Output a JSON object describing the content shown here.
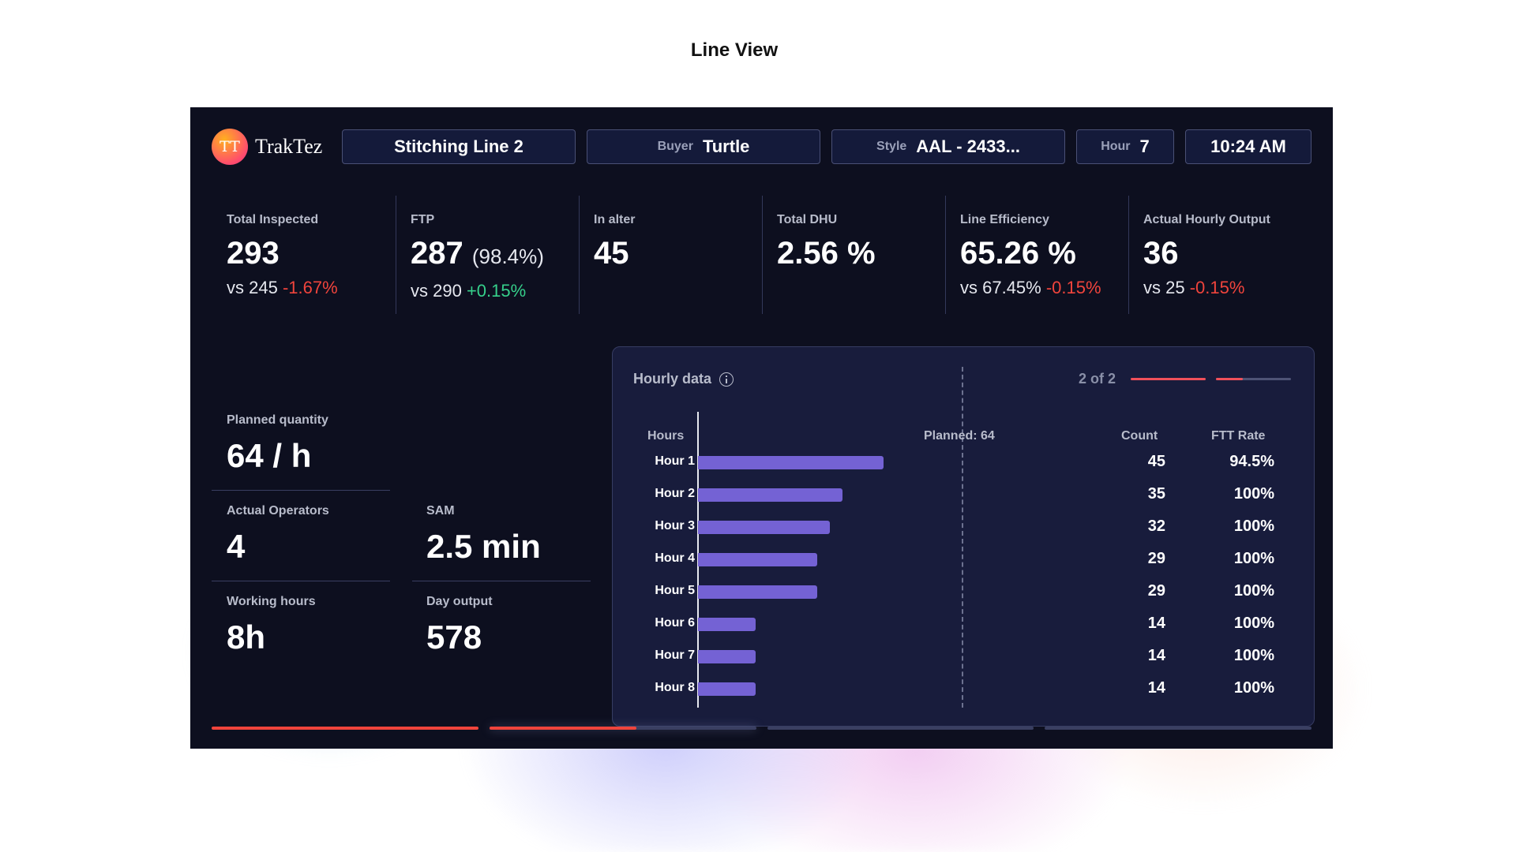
{
  "page_title": "Line View",
  "header": {
    "logo_mark": "TT",
    "logo_text": "TrakTez",
    "line_name": "Stitching Line 2",
    "buyer_label": "Buyer",
    "buyer_value": "Turtle",
    "style_label": "Style",
    "style_value": "AAL - 2433...",
    "hour_label": "Hour",
    "hour_value": "7",
    "time": "10:24 AM"
  },
  "metrics": [
    {
      "label": "Total Inspected",
      "value": "293",
      "pct": "",
      "vs": "vs 245",
      "delta": "-1.67%",
      "delta_sign": "neg"
    },
    {
      "label": "FTP",
      "value": "287",
      "pct": "(98.4%)",
      "vs": "vs 290",
      "delta": "+0.15%",
      "delta_sign": "pos"
    },
    {
      "label": "In alter",
      "value": "45",
      "pct": "",
      "vs": "",
      "delta": "",
      "delta_sign": ""
    },
    {
      "label": "Total DHU",
      "value": "2.56 %",
      "pct": "",
      "vs": "",
      "delta": "",
      "delta_sign": ""
    },
    {
      "label": "Line Efficiency",
      "value": "65.26 %",
      "pct": "",
      "vs": "vs 67.45%",
      "delta": "-0.15%",
      "delta_sign": "neg"
    },
    {
      "label": "Actual Hourly Output",
      "value": "36",
      "pct": "",
      "vs": "vs 25",
      "delta": "-0.15%",
      "delta_sign": "neg"
    }
  ],
  "stats": {
    "planned_quantity": {
      "label": "Planned quantity",
      "value": "64 / h"
    },
    "actual_operators": {
      "label": "Actual Operators",
      "value": "4"
    },
    "sam": {
      "label": "SAM",
      "value": "2.5 min"
    },
    "working_hours": {
      "label": "Working hours",
      "value": "8h"
    },
    "day_output": {
      "label": "Day output",
      "value": "578"
    }
  },
  "hourly": {
    "title": "Hourly data",
    "pager": "2 of 2",
    "col_hours": "Hours",
    "col_count": "Count",
    "col_ftt": "FTT Rate",
    "planned_label": "Planned: 64",
    "planned_value": 64,
    "rows": [
      {
        "hour": "Hour 1",
        "count": 45,
        "count_label": "45",
        "ftt": "94.5%"
      },
      {
        "hour": "Hour 2",
        "count": 35,
        "count_label": "35",
        "ftt": "100%"
      },
      {
        "hour": "Hour 3",
        "count": 32,
        "count_label": "32",
        "ftt": "100%"
      },
      {
        "hour": "Hour 4",
        "count": 29,
        "count_label": "29",
        "ftt": "100%"
      },
      {
        "hour": "Hour 5",
        "count": 29,
        "count_label": "29",
        "ftt": "100%"
      },
      {
        "hour": "Hour 6",
        "count": 14,
        "count_label": "14",
        "ftt": "100%"
      },
      {
        "hour": "Hour 7",
        "count": 14,
        "count_label": "14",
        "ftt": "100%"
      },
      {
        "hour": "Hour 8",
        "count": 14,
        "count_label": "14",
        "ftt": "100%"
      }
    ]
  },
  "page_progress": {
    "pages_total": 4,
    "current_page": 2,
    "current_page_fraction": 0.55
  },
  "colors": {
    "accent_red": "#f0443c",
    "positive_green": "#36d08b",
    "bar_purple": "#7462d4",
    "background": "#0d0f1f"
  }
}
